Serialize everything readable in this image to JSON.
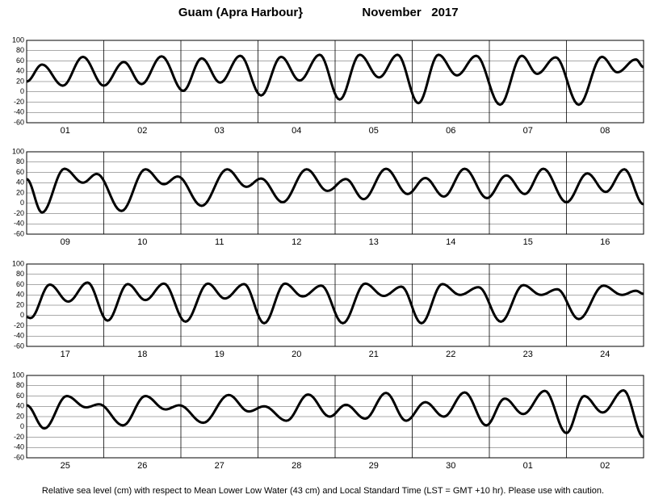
{
  "title": "Guam (Apra Harbour}",
  "date": "November   2017",
  "caption": "Relative sea level (cm) with respect to Mean Lower Low Water (43 cm) and Local Standard Time (LST = GMT +10 hr). Please use with caution.",
  "chart_data": [
    {
      "type": "line",
      "categories": [
        "01",
        "02",
        "03",
        "04",
        "05",
        "06",
        "07",
        "08"
      ],
      "xlim": [
        0,
        8
      ],
      "xticks": [
        0,
        1,
        2,
        3,
        4,
        5,
        6,
        7,
        8
      ],
      "ylim": [
        -60,
        100
      ],
      "yticks": [
        -60,
        -40,
        -20,
        0,
        20,
        40,
        60,
        80,
        100
      ],
      "grid": true,
      "color": "#000000",
      "x": [
        0,
        0.2,
        0.47,
        0.73,
        1.0,
        1.26,
        1.49,
        1.75,
        2.03,
        2.27,
        2.51,
        2.77,
        3.04,
        3.3,
        3.54,
        3.8,
        4.06,
        4.32,
        4.57,
        4.81,
        5.08,
        5.34,
        5.58,
        5.83,
        6.14,
        6.42,
        6.62,
        6.86,
        7.16,
        7.46,
        7.66,
        7.9,
        8
      ],
      "values": [
        20,
        53,
        12,
        68,
        12,
        58,
        15,
        69,
        2,
        65,
        18,
        70,
        -7,
        68,
        22,
        72,
        -15,
        72,
        28,
        72,
        -22,
        72,
        32,
        70,
        -25,
        70,
        35,
        67,
        -25,
        68,
        38,
        63,
        48
      ]
    },
    {
      "type": "line",
      "categories": [
        "09",
        "10",
        "11",
        "12",
        "13",
        "14",
        "15",
        "16"
      ],
      "xlim": [
        0,
        8
      ],
      "xticks": [
        0,
        1,
        2,
        3,
        4,
        5,
        6,
        7,
        8
      ],
      "ylim": [
        -60,
        100
      ],
      "yticks": [
        -60,
        -40,
        -20,
        0,
        20,
        40,
        60,
        80,
        100
      ],
      "grid": true,
      "color": "#000000",
      "x": [
        0,
        0.2,
        0.49,
        0.73,
        0.91,
        1.23,
        1.54,
        1.78,
        1.96,
        2.27,
        2.6,
        2.85,
        3.04,
        3.32,
        3.63,
        3.9,
        4.14,
        4.37,
        4.66,
        4.94,
        5.17,
        5.41,
        5.68,
        5.97,
        6.22,
        6.46,
        6.7,
        7.0,
        7.27,
        7.51,
        7.75,
        8
      ],
      "values": [
        47,
        -18,
        67,
        40,
        57,
        -15,
        66,
        37,
        52,
        -5,
        66,
        32,
        48,
        2,
        66,
        24,
        47,
        8,
        67,
        18,
        49,
        13,
        67,
        10,
        54,
        18,
        67,
        2,
        58,
        22,
        66,
        -2
      ]
    },
    {
      "type": "line",
      "categories": [
        "17",
        "18",
        "19",
        "20",
        "21",
        "22",
        "23",
        "24"
      ],
      "xlim": [
        0,
        8
      ],
      "xticks": [
        0,
        1,
        2,
        3,
        4,
        5,
        6,
        7,
        8
      ],
      "ylim": [
        -60,
        100
      ],
      "yticks": [
        -60,
        -40,
        -20,
        0,
        20,
        40,
        60,
        80,
        100
      ],
      "grid": true,
      "color": "#000000",
      "x": [
        0,
        0.05,
        0.3,
        0.54,
        0.79,
        1.05,
        1.31,
        1.54,
        1.78,
        2.06,
        2.35,
        2.57,
        2.82,
        3.08,
        3.35,
        3.58,
        3.82,
        4.1,
        4.39,
        4.63,
        4.86,
        5.12,
        5.39,
        5.62,
        5.86,
        6.15,
        6.44,
        6.67,
        6.88,
        7.16,
        7.48,
        7.72,
        7.9,
        8
      ],
      "values": [
        -3,
        -5,
        60,
        27,
        64,
        -10,
        61,
        30,
        62,
        -12,
        62,
        33,
        61,
        -15,
        62,
        37,
        58,
        -15,
        62,
        38,
        56,
        -15,
        61,
        40,
        55,
        -12,
        59,
        40,
        51,
        -7,
        58,
        40,
        48,
        42
      ]
    },
    {
      "type": "line",
      "categories": [
        "25",
        "26",
        "27",
        "28",
        "29",
        "30",
        "01",
        "02"
      ],
      "xlim": [
        0,
        8
      ],
      "xticks": [
        0,
        1,
        2,
        3,
        4,
        5,
        6,
        7,
        8
      ],
      "ylim": [
        -60,
        100
      ],
      "yticks": [
        -60,
        -40,
        -20,
        0,
        20,
        40,
        60,
        80,
        100
      ],
      "grid": true,
      "color": "#000000",
      "x": [
        0,
        0.23,
        0.52,
        0.77,
        0.94,
        1.25,
        1.54,
        1.8,
        1.98,
        2.29,
        2.62,
        2.88,
        3.08,
        3.37,
        3.65,
        3.93,
        4.14,
        4.39,
        4.66,
        4.92,
        5.17,
        5.41,
        5.68,
        5.96,
        6.2,
        6.44,
        6.72,
        7.0,
        7.23,
        7.47,
        7.74,
        8
      ],
      "values": [
        42,
        -3,
        60,
        38,
        44,
        3,
        60,
        34,
        42,
        8,
        62,
        30,
        40,
        12,
        63,
        20,
        43,
        16,
        66,
        12,
        48,
        20,
        67,
        3,
        55,
        25,
        70,
        -12,
        60,
        28,
        71,
        -20
      ]
    }
  ]
}
